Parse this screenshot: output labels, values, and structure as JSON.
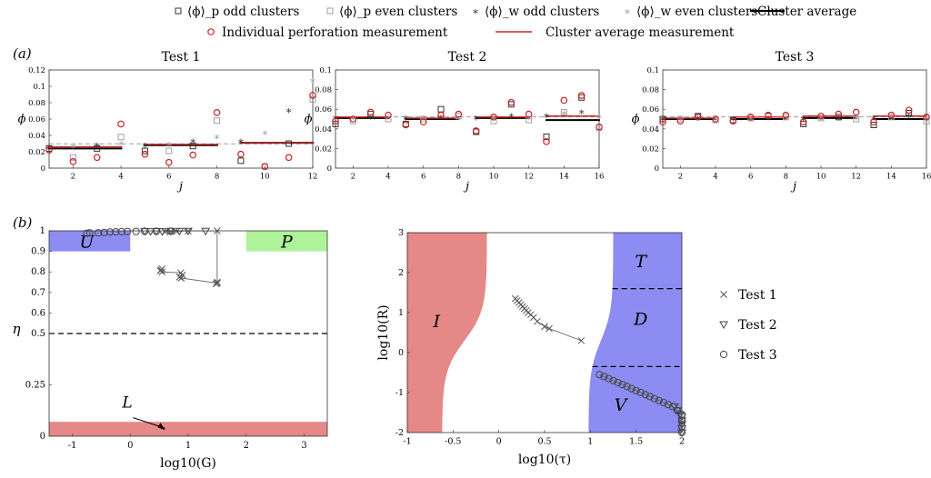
{
  "legend": {
    "row1": [
      {
        "marker": "square-black",
        "label": "⟨ϕ⟩_p odd clusters"
      },
      {
        "marker": "square-gray",
        "label": "⟨ϕ⟩_p even clusters"
      },
      {
        "marker": "star-black",
        "label": "⟨ϕ⟩_w odd clusters"
      },
      {
        "marker": "star-gray",
        "label": "⟨ϕ⟩_w even clusters"
      },
      {
        "marker": "line-black",
        "label": "Cluster average"
      }
    ],
    "row2": [
      {
        "marker": "circle-red",
        "label": "Individual perforation measurement"
      },
      {
        "marker": "line-red",
        "label": "Cluster average measurement"
      }
    ]
  },
  "panel_labels": {
    "a": "(a)",
    "b": "(b)"
  },
  "colors": {
    "red": "#cc2222",
    "black": "#000000",
    "gray": "#a0a0a0",
    "unstable": "#8c8cf2",
    "plug": "#aef29a",
    "lower": "#e58888"
  },
  "chart_data": [
    {
      "type": "scatter",
      "title": "Test 1",
      "xlabel": "j",
      "ylabel": "ϕ",
      "xlim": [
        1,
        12
      ],
      "ylim": [
        0,
        0.12
      ],
      "xticks": [
        2,
        4,
        6,
        8,
        10,
        12
      ],
      "yticks": [
        0,
        0.02,
        0.04,
        0.06,
        0.08,
        0.1,
        0.12
      ],
      "ytick_labels": [
        "0",
        "0.02",
        "0.04",
        "0.06",
        "0.08",
        "0.1",
        "0.12"
      ],
      "clusters": [
        [
          1,
          4
        ],
        [
          5,
          8
        ],
        [
          9,
          12
        ]
      ],
      "cluster_average": [
        0.024,
        0.028,
        0.031
      ],
      "cluster_average_measurement": [
        0.026,
        0.029,
        0.031
      ],
      "measured": [
        [
          1,
          0.022
        ],
        [
          2,
          0.008
        ],
        [
          3,
          0.013
        ],
        [
          4,
          0.054
        ],
        [
          5,
          0.017
        ],
        [
          6,
          0.007
        ],
        [
          7,
          0.016
        ],
        [
          8,
          0.068
        ],
        [
          9,
          0.017
        ],
        [
          10,
          0.002
        ],
        [
          11,
          0.013
        ],
        [
          12,
          0.089
        ]
      ],
      "phi_p": [
        [
          1,
          0.024
        ],
        [
          2,
          0.013
        ],
        [
          3,
          0.024
        ],
        [
          4,
          0.038
        ],
        [
          5,
          0.021
        ],
        [
          6,
          0.021
        ],
        [
          7,
          0.027
        ],
        [
          8,
          0.058
        ],
        [
          9,
          0.009
        ],
        [
          10,
          0.002
        ],
        [
          11,
          0.03
        ],
        [
          12,
          0.084
        ]
      ],
      "phi_w": [
        [
          1,
          0.027
        ],
        [
          2,
          0.028
        ],
        [
          3,
          0.029
        ],
        [
          4,
          0.031
        ],
        [
          5,
          0.029
        ],
        [
          6,
          0.03
        ],
        [
          7,
          0.034
        ],
        [
          8,
          0.039
        ],
        [
          9,
          0.034
        ],
        [
          10,
          0.044
        ],
        [
          11,
          0.071
        ],
        [
          12,
          0.108
        ]
      ]
    },
    {
      "type": "scatter",
      "title": "Test 2",
      "xlabel": "j",
      "ylabel": "ϕ",
      "xlim": [
        1,
        16
      ],
      "ylim": [
        0,
        0.1
      ],
      "xticks": [
        2,
        4,
        6,
        8,
        10,
        12,
        14,
        16
      ],
      "yticks": [
        0,
        0.02,
        0.04,
        0.06,
        0.08,
        0.1
      ],
      "ytick_labels": [
        "0",
        "0.02",
        "0.04",
        "0.06",
        "0.08",
        "0.1"
      ],
      "clusters": [
        [
          1,
          4
        ],
        [
          5,
          8
        ],
        [
          9,
          12
        ],
        [
          13,
          16
        ]
      ],
      "cluster_average": [
        0.051,
        0.05,
        0.051,
        0.049
      ],
      "cluster_average_measurement": [
        0.052,
        0.051,
        0.052,
        0.053
      ],
      "measured": [
        [
          1,
          0.048
        ],
        [
          2,
          0.05
        ],
        [
          3,
          0.057
        ],
        [
          4,
          0.054
        ],
        [
          5,
          0.044
        ],
        [
          6,
          0.047
        ],
        [
          7,
          0.054
        ],
        [
          8,
          0.055
        ],
        [
          9,
          0.038
        ],
        [
          10,
          0.052
        ],
        [
          11,
          0.067
        ],
        [
          12,
          0.055
        ],
        [
          13,
          0.027
        ],
        [
          14,
          0.069
        ],
        [
          15,
          0.074
        ],
        [
          16,
          0.042
        ]
      ],
      "phi_p": [
        [
          1,
          0.045
        ],
        [
          2,
          0.048
        ],
        [
          3,
          0.055
        ],
        [
          4,
          0.05
        ],
        [
          5,
          0.045
        ],
        [
          6,
          0.05
        ],
        [
          7,
          0.06
        ],
        [
          8,
          0.053
        ],
        [
          9,
          0.037
        ],
        [
          10,
          0.048
        ],
        [
          11,
          0.065
        ],
        [
          12,
          0.049
        ],
        [
          13,
          0.032
        ],
        [
          14,
          0.057
        ],
        [
          15,
          0.072
        ],
        [
          16,
          0.041
        ]
      ],
      "phi_w": [
        [
          1,
          0.052
        ],
        [
          2,
          0.052
        ],
        [
          3,
          0.053
        ],
        [
          4,
          0.052
        ],
        [
          5,
          0.052
        ],
        [
          6,
          0.052
        ],
        [
          7,
          0.053
        ],
        [
          8,
          0.052
        ],
        [
          9,
          0.052
        ],
        [
          10,
          0.053
        ],
        [
          11,
          0.054
        ],
        [
          12,
          0.052
        ],
        [
          13,
          0.054
        ],
        [
          14,
          0.057
        ],
        [
          15,
          0.058
        ],
        [
          16,
          0.053
        ]
      ]
    },
    {
      "type": "scatter",
      "title": "Test 3",
      "xlabel": "j",
      "ylabel": "ϕ",
      "xlim": [
        1,
        16
      ],
      "ylim": [
        0,
        0.1
      ],
      "xticks": [
        2,
        4,
        6,
        8,
        10,
        12,
        14,
        16
      ],
      "yticks": [
        0,
        0.02,
        0.04,
        0.06,
        0.08,
        0.1
      ],
      "ytick_labels": [
        "0",
        "0.02",
        "0.04",
        "0.06",
        "0.08",
        "0.1"
      ],
      "clusters": [
        [
          1,
          4
        ],
        [
          5,
          8
        ],
        [
          9,
          12
        ],
        [
          13,
          16
        ]
      ],
      "cluster_average": [
        0.05,
        0.05,
        0.051,
        0.05
      ],
      "cluster_average_measurement": [
        0.051,
        0.052,
        0.053,
        0.053
      ],
      "measured": [
        [
          1,
          0.047
        ],
        [
          2,
          0.048
        ],
        [
          3,
          0.052
        ],
        [
          4,
          0.05
        ],
        [
          5,
          0.048
        ],
        [
          6,
          0.052
        ],
        [
          7,
          0.054
        ],
        [
          8,
          0.054
        ],
        [
          9,
          0.047
        ],
        [
          10,
          0.053
        ],
        [
          11,
          0.055
        ],
        [
          12,
          0.057
        ],
        [
          13,
          0.047
        ],
        [
          14,
          0.054
        ],
        [
          15,
          0.059
        ],
        [
          16,
          0.052
        ]
      ],
      "phi_p": [
        [
          1,
          0.05
        ],
        [
          2,
          0.05
        ],
        [
          3,
          0.053
        ],
        [
          4,
          0.049
        ],
        [
          5,
          0.049
        ],
        [
          6,
          0.051
        ],
        [
          7,
          0.053
        ],
        [
          8,
          0.052
        ],
        [
          9,
          0.045
        ],
        [
          10,
          0.051
        ],
        [
          11,
          0.052
        ],
        [
          12,
          0.05
        ],
        [
          13,
          0.044
        ],
        [
          14,
          0.052
        ],
        [
          15,
          0.056
        ],
        [
          16,
          0.048
        ]
      ],
      "phi_w": [
        [
          1,
          0.051
        ],
        [
          2,
          0.051
        ],
        [
          3,
          0.052
        ],
        [
          4,
          0.051
        ],
        [
          5,
          0.051
        ],
        [
          6,
          0.051
        ],
        [
          7,
          0.052
        ],
        [
          8,
          0.052
        ],
        [
          9,
          0.051
        ],
        [
          10,
          0.052
        ],
        [
          11,
          0.052
        ],
        [
          12,
          0.052
        ],
        [
          13,
          0.052
        ],
        [
          14,
          0.053
        ],
        [
          15,
          0.054
        ],
        [
          16,
          0.052
        ]
      ]
    },
    {
      "type": "scatter",
      "xlabel": "log10(G)",
      "ylabel": "η",
      "xlim": [
        -1.4,
        3.4
      ],
      "ylim": [
        0,
        1
      ],
      "xticks": [
        -1,
        0,
        1,
        2,
        3
      ],
      "xtick_labels": [
        "-1",
        "0",
        "1",
        "2",
        "3"
      ],
      "yticks": [
        0,
        0.25,
        0.5,
        0.6,
        0.7,
        0.8,
        0.9,
        1
      ],
      "ytick_labels": [
        "0",
        "0.25",
        "0.5",
        "0.6",
        "0.7",
        "0.8",
        "0.9",
        "1"
      ],
      "regions": [
        {
          "name": "U",
          "x": [
            -1.4,
            0
          ],
          "y": [
            0.9,
            1
          ]
        },
        {
          "name": "P",
          "x": [
            2,
            3.4
          ],
          "y": [
            0.9,
            1
          ]
        },
        {
          "name": "L",
          "x": [
            -1.4,
            3.4
          ],
          "y": [
            0,
            0.07
          ]
        }
      ],
      "dashed_line_eta": 0.5,
      "annotation": {
        "text": "L",
        "arrow_to": [
          0.6,
          0.03
        ]
      },
      "test1": [
        [
          1.5,
          1.0
        ],
        [
          1.5,
          0.745
        ],
        [
          1.48,
          0.742
        ],
        [
          1.5,
          0.75
        ],
        [
          0.88,
          0.77
        ],
        [
          0.9,
          0.785
        ],
        [
          0.85,
          0.775
        ],
        [
          0.87,
          0.795
        ],
        [
          0.55,
          0.8
        ],
        [
          0.53,
          0.81
        ],
        [
          0.55,
          0.815
        ],
        [
          0.52,
          0.805
        ],
        [
          0.6,
          0.995
        ],
        [
          0.7,
          0.998
        ],
        [
          0.8,
          0.997
        ],
        [
          1.0,
          0.999
        ]
      ],
      "test1_path": [
        [
          0.55,
          0.815
        ],
        [
          0.55,
          0.8
        ],
        [
          0.88,
          0.795
        ],
        [
          0.88,
          0.77
        ],
        [
          1.5,
          0.745
        ],
        [
          1.5,
          1.0
        ],
        [
          1.0,
          0.999
        ],
        [
          0.6,
          0.995
        ]
      ],
      "test2": [
        [
          0.25,
          0.998
        ],
        [
          0.35,
          0.997
        ],
        [
          0.45,
          0.998
        ],
        [
          0.55,
          0.997
        ],
        [
          0.7,
          0.999
        ],
        [
          0.85,
          0.999
        ],
        [
          1.0,
          0.999
        ],
        [
          1.3,
          0.999
        ]
      ],
      "test3": [
        [
          -0.75,
          0.988
        ],
        [
          -0.7,
          0.99
        ],
        [
          -0.55,
          0.99
        ],
        [
          -0.45,
          0.992
        ],
        [
          -0.35,
          0.994
        ],
        [
          -0.25,
          0.995
        ],
        [
          -0.15,
          0.996
        ],
        [
          -0.05,
          0.997
        ],
        [
          0.1,
          0.997
        ],
        [
          0.25,
          0.998
        ],
        [
          0.45,
          0.998
        ],
        [
          0.7,
          0.998
        ]
      ]
    },
    {
      "type": "scatter",
      "xlabel": "log10(τ)",
      "ylabel": "log10(R)",
      "xlim": [
        -1,
        2
      ],
      "ylim": [
        -2,
        3
      ],
      "xticks": [
        -1,
        -0.5,
        0,
        0.5,
        1,
        1.5,
        2
      ],
      "xtick_labels": [
        "-1",
        "-0.5",
        "0",
        "0.5",
        "1",
        "1.5",
        "2"
      ],
      "yticks": [
        -2,
        -1,
        0,
        1,
        2,
        3
      ],
      "regions": [
        "I",
        "T",
        "D",
        "V"
      ],
      "boundaries_R": [
        1.6,
        -0.35
      ],
      "legend": [
        "Test 1",
        "Test 2",
        "Test 3"
      ],
      "test1": [
        [
          0.18,
          1.35
        ],
        [
          0.2,
          1.3
        ],
        [
          0.22,
          1.25
        ],
        [
          0.24,
          1.2
        ],
        [
          0.26,
          1.15
        ],
        [
          0.28,
          1.1
        ],
        [
          0.3,
          1.05
        ],
        [
          0.32,
          1.0
        ],
        [
          0.35,
          0.95
        ],
        [
          0.38,
          0.88
        ],
        [
          0.42,
          0.78
        ],
        [
          0.5,
          0.65
        ],
        [
          0.55,
          0.6
        ],
        [
          0.9,
          0.3
        ]
      ],
      "test2": [
        [
          1.92,
          -1.35
        ],
        [
          1.95,
          -1.45
        ],
        [
          1.98,
          -1.55
        ],
        [
          2.0,
          -1.6
        ],
        [
          2.0,
          -1.7
        ],
        [
          2.0,
          -1.8
        ],
        [
          2.0,
          -1.9
        ],
        [
          2.0,
          -2.0
        ]
      ],
      "test3": [
        [
          1.1,
          -0.55
        ],
        [
          1.15,
          -0.6
        ],
        [
          1.2,
          -0.65
        ],
        [
          1.25,
          -0.7
        ],
        [
          1.3,
          -0.75
        ],
        [
          1.35,
          -0.8
        ],
        [
          1.4,
          -0.85
        ],
        [
          1.45,
          -0.9
        ],
        [
          1.5,
          -0.95
        ],
        [
          1.55,
          -1.0
        ],
        [
          1.6,
          -1.05
        ],
        [
          1.65,
          -1.1
        ],
        [
          1.7,
          -1.15
        ],
        [
          1.75,
          -1.2
        ],
        [
          1.8,
          -1.25
        ],
        [
          1.85,
          -1.3
        ],
        [
          1.9,
          -1.35
        ],
        [
          1.95,
          -1.45
        ],
        [
          2.0,
          -1.55
        ],
        [
          2.0,
          -1.7
        ],
        [
          2.0,
          -1.85
        ],
        [
          2.0,
          -2.0
        ]
      ]
    }
  ]
}
